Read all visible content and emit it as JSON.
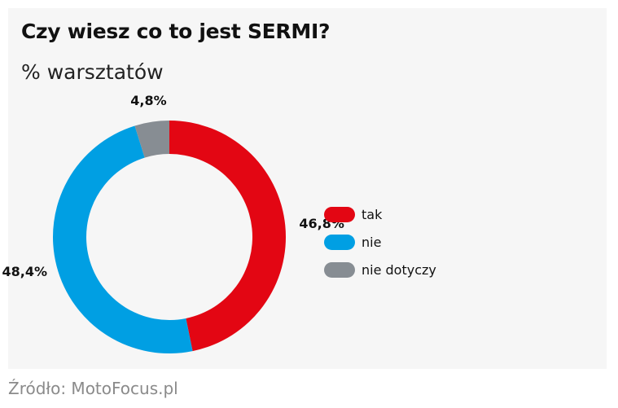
{
  "chart_data": {
    "type": "pie",
    "title": "Czy wiesz co to jest SERMI?",
    "subtitle": "% warsztatów",
    "categories": [
      "tak",
      "nie",
      "nie dotyczy"
    ],
    "values": [
      46.8,
      48.4,
      4.8
    ],
    "value_labels": [
      "46,8%",
      "48,4%",
      "4,8%"
    ],
    "colors": [
      "#e30613",
      "#009fe3",
      "#878d93"
    ],
    "legend_position": "right",
    "donut": true
  },
  "source": "Źródło: MotoFocus.pl"
}
